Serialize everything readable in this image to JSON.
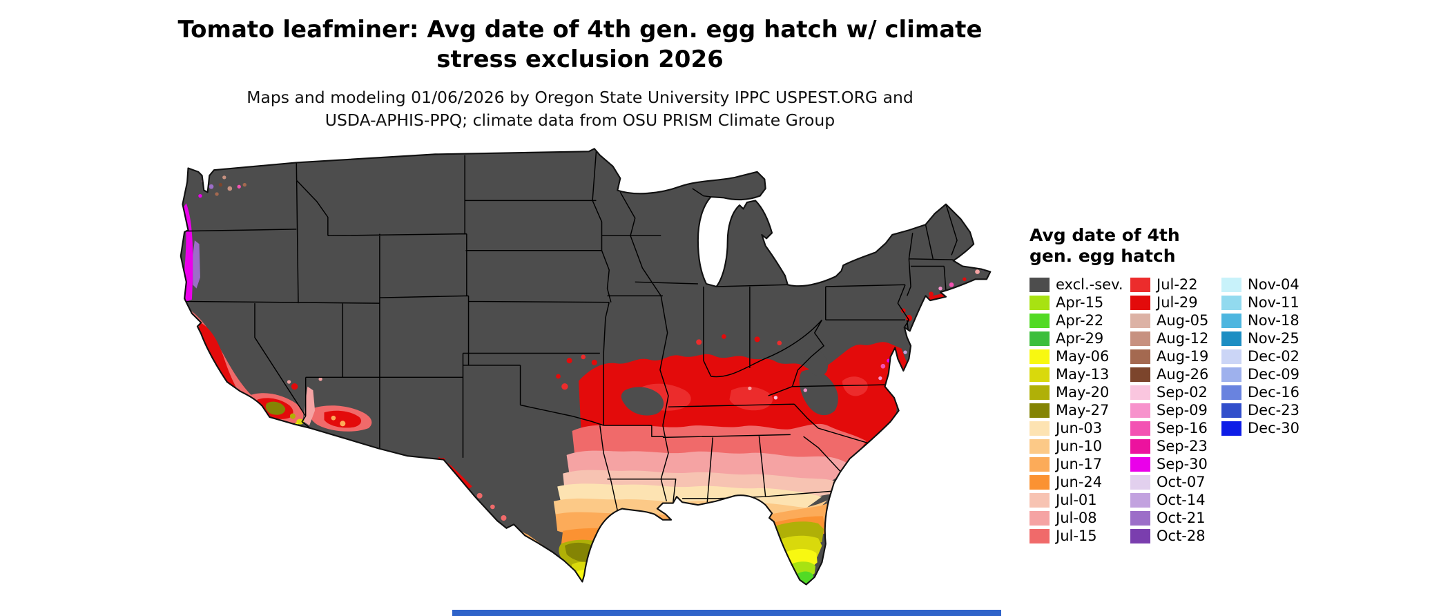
{
  "title": {
    "line1": "Tomato leafminer: Avg date of 4th gen. egg hatch w/ climate",
    "line2": "stress exclusion 2026"
  },
  "subtitle": {
    "line1": "Maps and modeling 01/06/2026 by Oregon State University IPPC USPEST.ORG and",
    "line2": "USDA-APHIS-PPQ; climate data from OSU PRISM Climate Group"
  },
  "legend": {
    "title_line1": "Avg date of 4th",
    "title_line2": "gen. egg hatch",
    "columns": [
      [
        {
          "label": "excl.-sev.",
          "key": "excl"
        },
        {
          "label": "Apr-15",
          "key": "apr15"
        },
        {
          "label": "Apr-22",
          "key": "apr22"
        },
        {
          "label": "Apr-29",
          "key": "apr29"
        },
        {
          "label": "May-06",
          "key": "may06"
        },
        {
          "label": "May-13",
          "key": "may13"
        },
        {
          "label": "May-20",
          "key": "may20"
        },
        {
          "label": "May-27",
          "key": "may27"
        },
        {
          "label": "Jun-03",
          "key": "jun03"
        },
        {
          "label": "Jun-10",
          "key": "jun10"
        },
        {
          "label": "Jun-17",
          "key": "jun17"
        },
        {
          "label": "Jun-24",
          "key": "jun24"
        },
        {
          "label": "Jul-01",
          "key": "jul01"
        },
        {
          "label": "Jul-08",
          "key": "jul08"
        },
        {
          "label": "Jul-15",
          "key": "jul15"
        }
      ],
      [
        {
          "label": "Jul-22",
          "key": "jul22"
        },
        {
          "label": "Jul-29",
          "key": "jul29"
        },
        {
          "label": "Aug-05",
          "key": "aug05"
        },
        {
          "label": "Aug-12",
          "key": "aug12"
        },
        {
          "label": "Aug-19",
          "key": "aug19"
        },
        {
          "label": "Aug-26",
          "key": "aug26"
        },
        {
          "label": "Sep-02",
          "key": "sep02"
        },
        {
          "label": "Sep-09",
          "key": "sep09"
        },
        {
          "label": "Sep-16",
          "key": "sep16"
        },
        {
          "label": "Sep-23",
          "key": "sep23"
        },
        {
          "label": "Sep-30",
          "key": "sep30"
        },
        {
          "label": "Oct-07",
          "key": "oct07"
        },
        {
          "label": "Oct-14",
          "key": "oct14"
        },
        {
          "label": "Oct-21",
          "key": "oct21"
        },
        {
          "label": "Oct-28",
          "key": "oct28"
        }
      ],
      [
        {
          "label": "Nov-04",
          "key": "nov04"
        },
        {
          "label": "Nov-11",
          "key": "nov11"
        },
        {
          "label": "Nov-18",
          "key": "nov18"
        },
        {
          "label": "Nov-25",
          "key": "nov25"
        },
        {
          "label": "Dec-02",
          "key": "dec02"
        },
        {
          "label": "Dec-09",
          "key": "dec09"
        },
        {
          "label": "Dec-16",
          "key": "dec16"
        },
        {
          "label": "Dec-23",
          "key": "dec23"
        },
        {
          "label": "Dec-30",
          "key": "dec30"
        }
      ]
    ]
  },
  "map": {
    "palette": {
      "excl": "#4d4d4d",
      "apr15": "#a8e212",
      "apr22": "#52da25",
      "apr29": "#3cbe3c",
      "may06": "#f8f811",
      "may13": "#d9d90c",
      "may20": "#b0b007",
      "may27": "#848404",
      "jun03": "#fde3b2",
      "jun10": "#fcc987",
      "jun17": "#fcab59",
      "jun24": "#fb9232",
      "jul01": "#f7c3b2",
      "jul08": "#f5a3a3",
      "jul15": "#f06a6a",
      "jul22": "#ec2c2c",
      "jul29": "#e30b0b",
      "aug05": "#dcb2a5",
      "aug12": "#c79180",
      "aug19": "#a46950",
      "aug26": "#7c452c",
      "sep02": "#fac6df",
      "sep09": "#f792cc",
      "sep16": "#f352b3",
      "sep23": "#ec129e",
      "sep30": "#ea00ea",
      "oct07": "#e2d0ee",
      "oct14": "#c2a2df",
      "oct21": "#9c6ec8",
      "oct28": "#7a3eae",
      "nov04": "#c8f2fa",
      "nov11": "#92daef",
      "nov18": "#4eb6df",
      "nov25": "#1d8ec3",
      "dec02": "#cbd5f6",
      "dec09": "#9eb1ed",
      "dec16": "#6983df",
      "dec23": "#324fcb",
      "dec30": "#0e1de7"
    },
    "outline_color": "#111111",
    "state_border_color": "#000000"
  },
  "page": {
    "footer_strip_color": "#2f63c9"
  }
}
